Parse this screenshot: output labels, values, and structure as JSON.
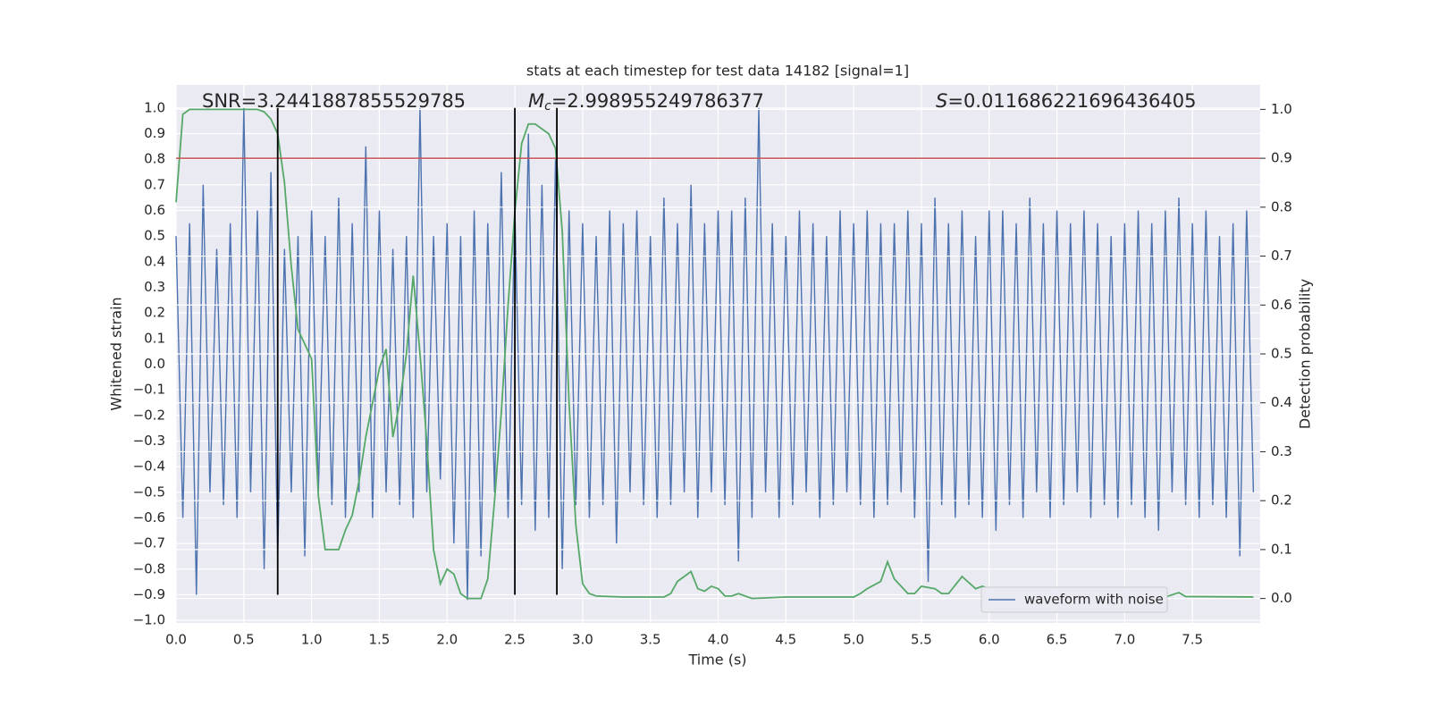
{
  "chart_data": {
    "type": "line",
    "title": "stats at each timestep for test data 14182 [signal=1]",
    "x_label": "Time (s)",
    "y_label": "Whitened strain",
    "y2_label": "Detection probability",
    "annotations": [
      {
        "text": "SNR=3.2441887855529785"
      },
      {
        "symbol": "M",
        "subscript": "c",
        "text": "=2.998955249786377"
      },
      {
        "symbol": "S",
        "text": "=0.011686221696436405"
      }
    ],
    "grid": true,
    "legend_position": "lower right",
    "xlim": [
      0,
      8
    ],
    "ylim": [
      -1.01,
      1.09
    ],
    "y2lim": [
      -0.05,
      1.05
    ],
    "xticks": [
      {
        "value": 0,
        "label": "0.0"
      },
      {
        "value": 0.5,
        "label": "0.5"
      },
      {
        "value": 1,
        "label": "1.0"
      },
      {
        "value": 1.5,
        "label": "1.5"
      },
      {
        "value": 2,
        "label": "2.0"
      },
      {
        "value": 2.5,
        "label": "2.5"
      },
      {
        "value": 3,
        "label": "3.0"
      },
      {
        "value": 3.5,
        "label": "3.5"
      },
      {
        "value": 4,
        "label": "4.0"
      },
      {
        "value": 4.5,
        "label": "4.5"
      },
      {
        "value": 5,
        "label": "5.0"
      },
      {
        "value": 5.5,
        "label": "5.5"
      },
      {
        "value": 6,
        "label": "6.0"
      },
      {
        "value": 6.5,
        "label": "6.5"
      },
      {
        "value": 7,
        "label": "7.0"
      },
      {
        "value": 7.5,
        "label": "7.5"
      }
    ],
    "yticks": [
      {
        "value": -1,
        "label": "−1.0"
      },
      {
        "value": -0.9,
        "label": "−0.9"
      },
      {
        "value": -0.8,
        "label": "−0.8"
      },
      {
        "value": -0.7,
        "label": "−0.7"
      },
      {
        "value": -0.6,
        "label": "−0.6"
      },
      {
        "value": -0.5,
        "label": "−0.5"
      },
      {
        "value": -0.4,
        "label": "−0.4"
      },
      {
        "value": -0.3,
        "label": "−0.3"
      },
      {
        "value": -0.2,
        "label": "−0.2"
      },
      {
        "value": -0.1,
        "label": "−0.1"
      },
      {
        "value": 0,
        "label": "0.0"
      },
      {
        "value": 0.1,
        "label": "0.1"
      },
      {
        "value": 0.2,
        "label": "0.2"
      },
      {
        "value": 0.3,
        "label": "0.3"
      },
      {
        "value": 0.4,
        "label": "0.4"
      },
      {
        "value": 0.5,
        "label": "0.5"
      },
      {
        "value": 0.6,
        "label": "0.6"
      },
      {
        "value": 0.7,
        "label": "0.7"
      },
      {
        "value": 0.8,
        "label": "0.8"
      },
      {
        "value": 0.9,
        "label": "0.9"
      },
      {
        "value": 1,
        "label": "1.0"
      }
    ],
    "y2ticks": [
      {
        "value": 0,
        "label": "0.0"
      },
      {
        "value": 0.1,
        "label": "0.1"
      },
      {
        "value": 0.2,
        "label": "0.2"
      },
      {
        "value": 0.3,
        "label": "0.3"
      },
      {
        "value": 0.4,
        "label": "0.4"
      },
      {
        "value": 0.5,
        "label": "0.5"
      },
      {
        "value": 0.6,
        "label": "0.6"
      },
      {
        "value": 0.7,
        "label": "0.7"
      },
      {
        "value": 0.8,
        "label": "0.8"
      },
      {
        "value": 0.9,
        "label": "0.9"
      },
      {
        "value": 1,
        "label": "1.0"
      }
    ],
    "hline": {
      "value": 0.9,
      "axis": "y2",
      "color": "#c44e52"
    },
    "vlines": {
      "values": [
        0.75,
        2.5,
        2.81
      ],
      "range": [
        -0.9,
        1.0
      ],
      "color": "#000000"
    },
    "series": [
      {
        "name": "waveform with noise",
        "color": "#4c72b0",
        "axis": "y",
        "x": [
          0,
          0.05,
          0.1,
          0.15,
          0.2,
          0.25,
          0.3,
          0.35,
          0.4,
          0.45,
          0.5,
          0.55,
          0.6,
          0.65,
          0.7,
          0.75,
          0.8,
          0.85,
          0.9,
          0.95,
          1,
          1.05,
          1.1,
          1.15,
          1.2,
          1.25,
          1.3,
          1.35,
          1.4,
          1.45,
          1.5,
          1.55,
          1.6,
          1.65,
          1.7,
          1.75,
          1.8,
          1.85,
          1.9,
          1.95,
          2,
          2.05,
          2.1,
          2.15,
          2.2,
          2.25,
          2.3,
          2.35,
          2.4,
          2.45,
          2.5,
          2.55,
          2.6,
          2.65,
          2.7,
          2.75,
          2.8,
          2.85,
          2.9,
          2.95,
          3,
          3.05,
          3.1,
          3.15,
          3.2,
          3.25,
          3.3,
          3.35,
          3.4,
          3.45,
          3.5,
          3.55,
          3.6,
          3.65,
          3.7,
          3.75,
          3.8,
          3.85,
          3.9,
          3.95,
          4,
          4.05,
          4.1,
          4.15,
          4.2,
          4.25,
          4.3,
          4.35,
          4.4,
          4.45,
          4.5,
          4.55,
          4.6,
          4.65,
          4.7,
          4.75,
          4.8,
          4.85,
          4.9,
          4.95,
          5,
          5.05,
          5.1,
          5.15,
          5.2,
          5.25,
          5.3,
          5.35,
          5.4,
          5.45,
          5.5,
          5.55,
          5.6,
          5.65,
          5.7,
          5.75,
          5.8,
          5.85,
          5.9,
          5.95,
          6,
          6.05,
          6.1,
          6.15,
          6.2,
          6.25,
          6.3,
          6.35,
          6.4,
          6.45,
          6.5,
          6.55,
          6.6,
          6.65,
          6.7,
          6.75,
          6.8,
          6.85,
          6.9,
          6.95,
          7,
          7.05,
          7.1,
          7.15,
          7.2,
          7.25,
          7.3,
          7.35,
          7.4,
          7.45,
          7.5,
          7.55,
          7.6,
          7.65,
          7.7,
          7.75,
          7.8,
          7.85,
          7.9,
          7.95
        ],
        "values": [
          0.5,
          -0.6,
          0.55,
          -0.9,
          0.7,
          -0.5,
          0.45,
          -0.55,
          0.55,
          -0.6,
          1.0,
          -0.5,
          0.6,
          -0.8,
          0.75,
          -0.75,
          0.45,
          -0.5,
          0.5,
          -0.75,
          0.6,
          -0.5,
          0.5,
          -0.55,
          0.65,
          -0.6,
          0.55,
          -0.5,
          0.85,
          -0.6,
          0.6,
          -0.5,
          0.45,
          -0.55,
          0.5,
          -0.6,
          1.0,
          -0.5,
          0.5,
          -0.45,
          0.55,
          -0.7,
          0.5,
          -0.92,
          0.6,
          -0.75,
          0.55,
          -0.5,
          0.75,
          -0.6,
          0.6,
          -0.55,
          0.9,
          -0.65,
          0.7,
          -0.6,
          0.8,
          -0.8,
          0.6,
          -0.55,
          0.55,
          -0.6,
          0.5,
          -0.55,
          0.6,
          -0.7,
          0.55,
          -0.5,
          0.6,
          -0.55,
          0.5,
          -0.6,
          0.65,
          -0.55,
          0.55,
          -0.5,
          0.7,
          -0.6,
          0.55,
          -0.5,
          0.6,
          -0.55,
          0.6,
          -0.77,
          0.65,
          -0.6,
          1.0,
          -0.5,
          0.55,
          -0.6,
          0.5,
          -0.55,
          0.6,
          -0.5,
          0.55,
          -0.6,
          0.5,
          -0.55,
          0.6,
          -0.5,
          0.55,
          -0.55,
          0.6,
          -0.6,
          0.55,
          -0.55,
          0.55,
          -0.5,
          0.6,
          -0.6,
          0.55,
          -0.85,
          0.65,
          -0.55,
          0.55,
          -0.6,
          0.6,
          -0.55,
          0.5,
          -0.6,
          0.6,
          -0.65,
          0.6,
          -0.55,
          0.55,
          -0.6,
          0.65,
          -0.5,
          0.55,
          -0.6,
          0.6,
          -0.55,
          0.55,
          -0.5,
          0.6,
          -0.6,
          0.55,
          -0.55,
          0.5,
          -0.6,
          0.55,
          -0.55,
          0.6,
          -0.6,
          0.55,
          -0.65,
          0.6,
          -0.5,
          0.65,
          -0.55,
          0.55,
          -0.6,
          0.6,
          -0.55,
          0.5,
          -0.6,
          0.55,
          -0.75,
          0.6,
          -0.5
        ]
      },
      {
        "color": "#55a868",
        "axis": "y2",
        "x": [
          0,
          0.05,
          0.1,
          0.2,
          0.3,
          0.4,
          0.5,
          0.6,
          0.65,
          0.7,
          0.75,
          0.8,
          0.85,
          0.9,
          0.95,
          1,
          1.05,
          1.1,
          1.15,
          1.2,
          1.25,
          1.3,
          1.35,
          1.4,
          1.45,
          1.5,
          1.55,
          1.6,
          1.65,
          1.7,
          1.75,
          1.8,
          1.85,
          1.9,
          1.95,
          2,
          2.05,
          2.1,
          2.15,
          2.2,
          2.25,
          2.3,
          2.35,
          2.4,
          2.45,
          2.5,
          2.55,
          2.6,
          2.65,
          2.7,
          2.75,
          2.8,
          2.85,
          2.9,
          2.95,
          3,
          3.05,
          3.1,
          3.3,
          3.6,
          3.65,
          3.7,
          3.8,
          3.85,
          3.9,
          3.95,
          4,
          4.05,
          4.1,
          4.15,
          4.2,
          4.25,
          4.5,
          5,
          5.05,
          5.1,
          5.2,
          5.25,
          5.3,
          5.4,
          5.45,
          5.5,
          5.6,
          5.65,
          5.7,
          5.8,
          5.9,
          5.95,
          6,
          6.1,
          6.5,
          7,
          7.1,
          7.2,
          7.3,
          7.4,
          7.45,
          7.95
        ],
        "values": [
          0.81,
          0.99,
          1.0,
          1.0,
          1.0,
          1.0,
          1.0,
          1.0,
          0.995,
          0.98,
          0.95,
          0.85,
          0.68,
          0.55,
          0.52,
          0.49,
          0.21,
          0.1,
          0.1,
          0.1,
          0.14,
          0.17,
          0.24,
          0.33,
          0.4,
          0.47,
          0.51,
          0.33,
          0.4,
          0.5,
          0.66,
          0.5,
          0.32,
          0.1,
          0.03,
          0.06,
          0.05,
          0.01,
          0.0,
          0.0,
          0.0,
          0.04,
          0.2,
          0.38,
          0.6,
          0.79,
          0.93,
          0.97,
          0.97,
          0.96,
          0.95,
          0.92,
          0.75,
          0.4,
          0.15,
          0.03,
          0.01,
          0.005,
          0.003,
          0.003,
          0.01,
          0.035,
          0.055,
          0.02,
          0.015,
          0.025,
          0.02,
          0.005,
          0.005,
          0.01,
          0.005,
          0.0,
          0.003,
          0.003,
          0.01,
          0.02,
          0.035,
          0.075,
          0.04,
          0.01,
          0.01,
          0.025,
          0.02,
          0.01,
          0.01,
          0.045,
          0.02,
          0.025,
          0.02,
          0.005,
          0.005,
          0.005,
          0.01,
          0.005,
          0.003,
          0.012,
          0.004,
          0.003
        ]
      }
    ]
  }
}
